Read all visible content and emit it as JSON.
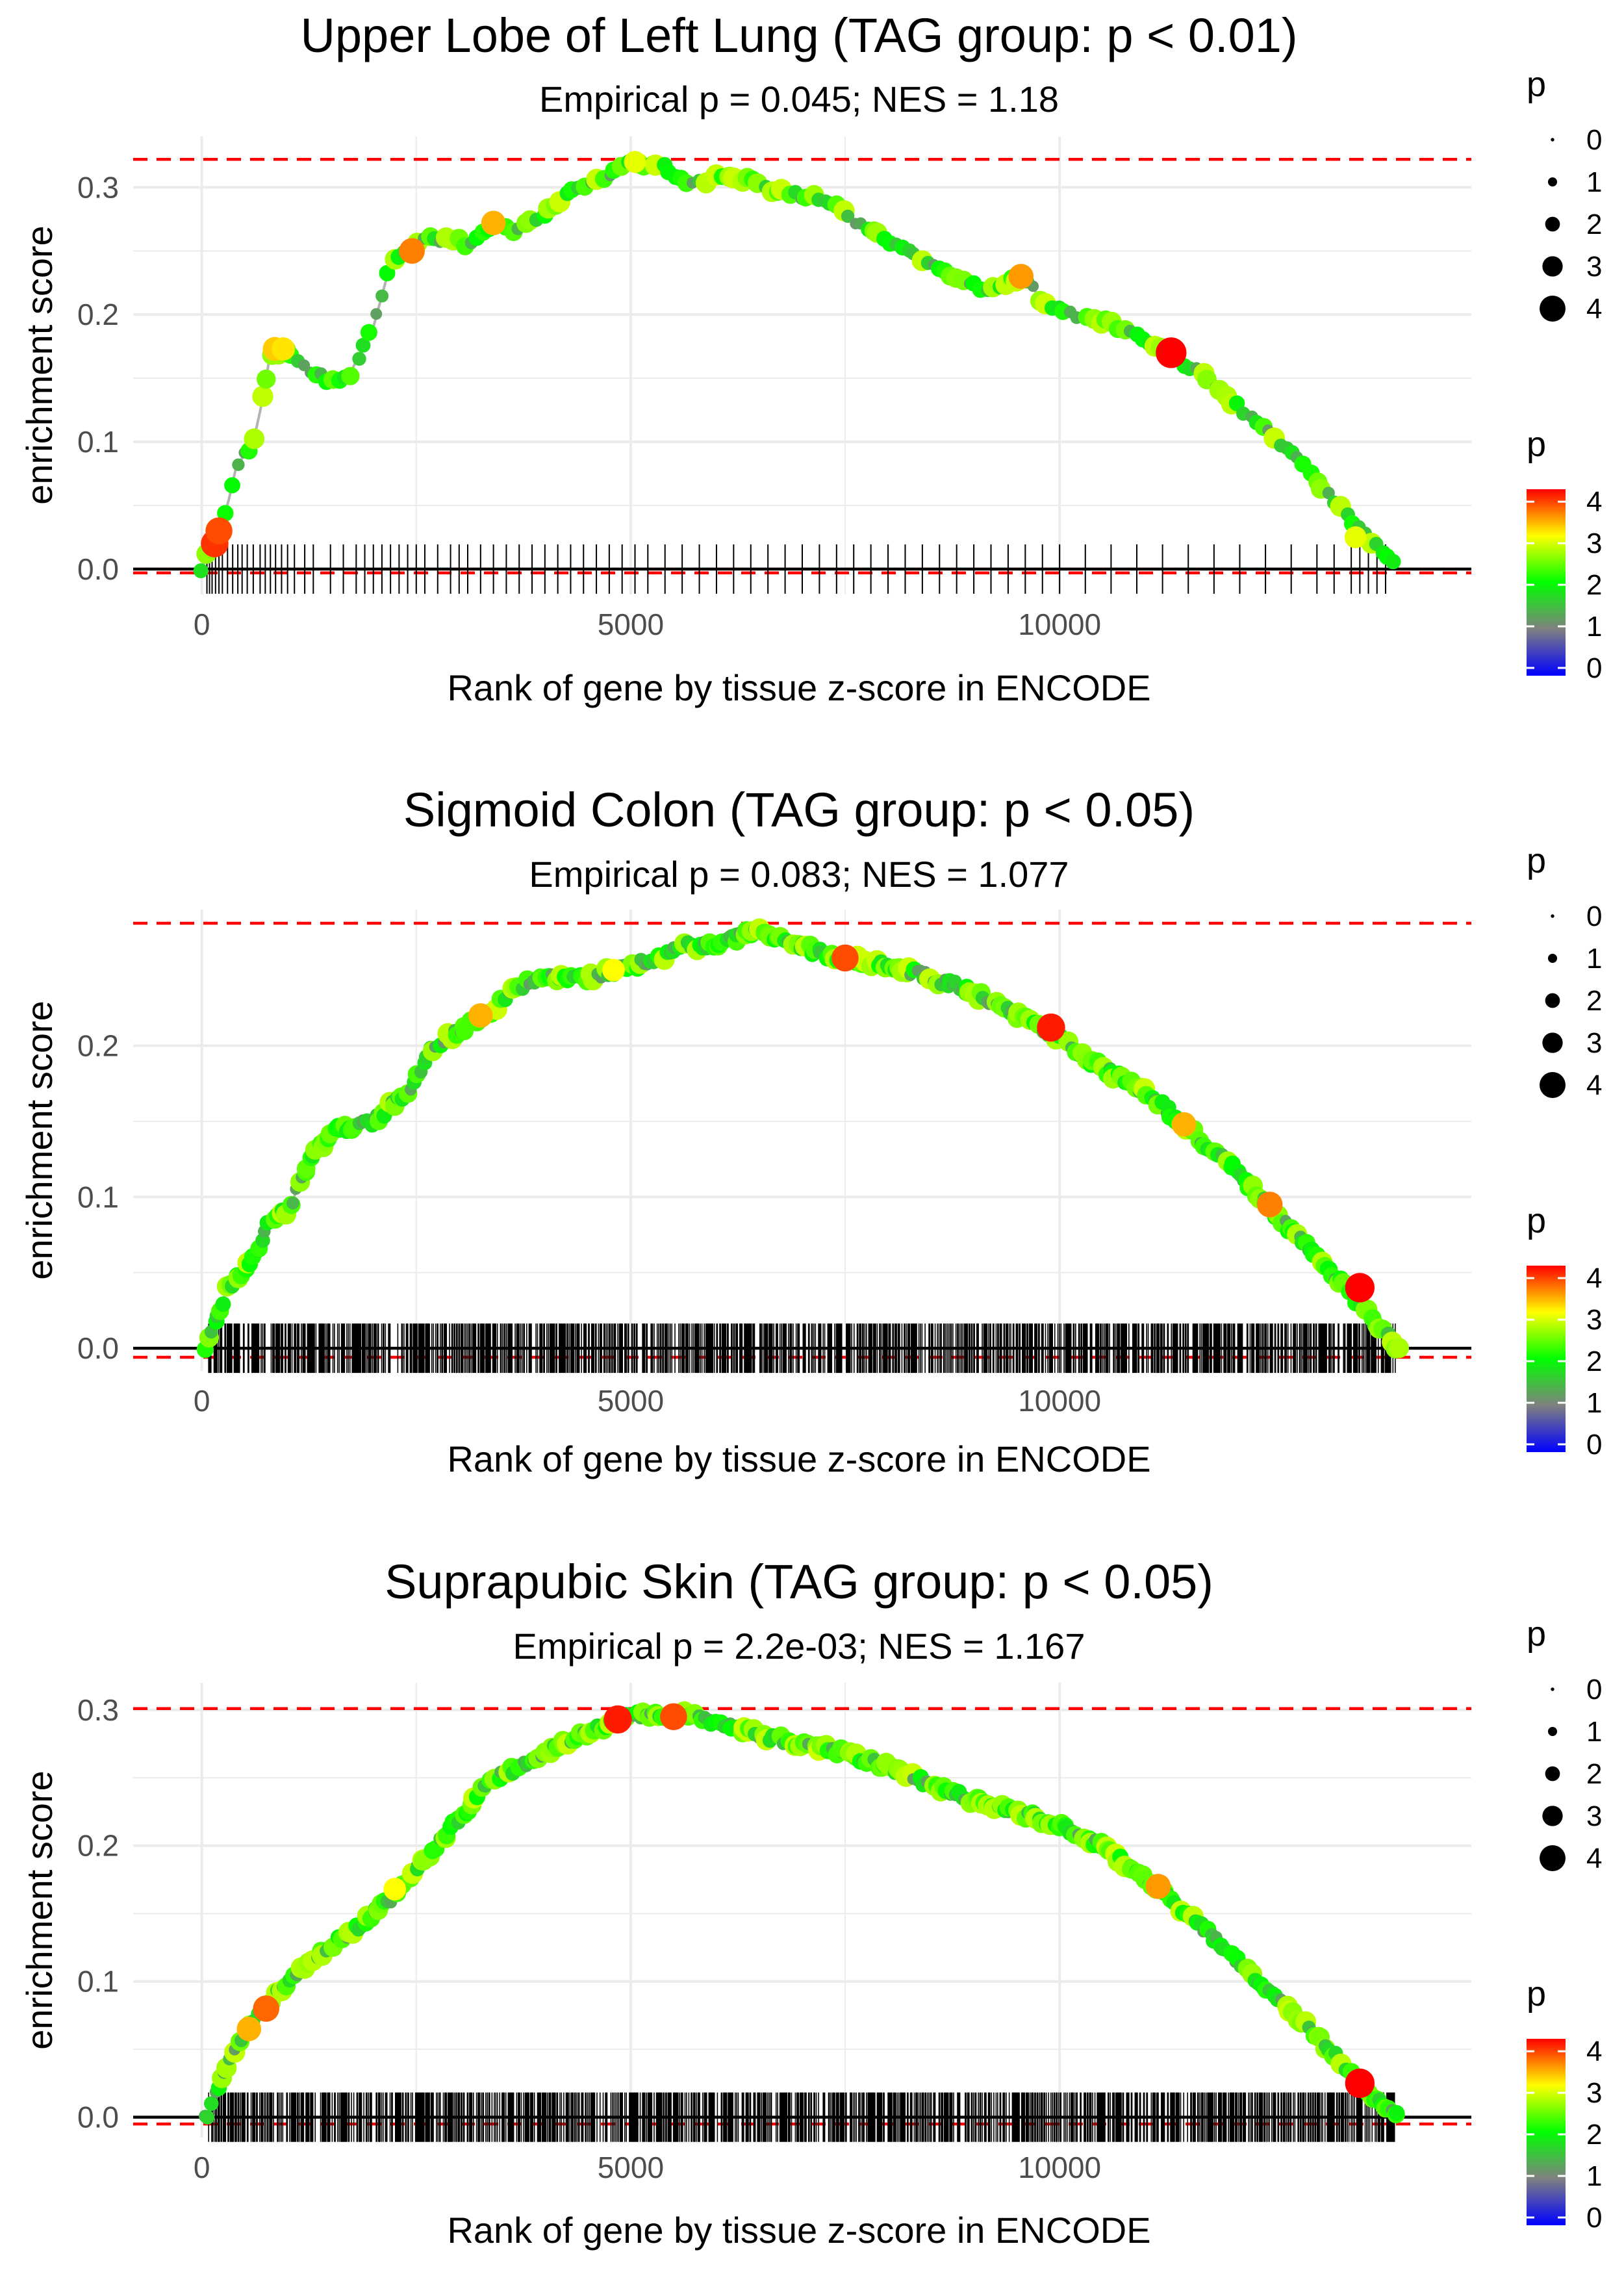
{
  "colors": {
    "grid": "#ebebeb",
    "threshold_line": "#ff0000",
    "running_line": "#b3b3b3",
    "axis_text": "#4d4d4d",
    "text": "#000000"
  },
  "legend_text": {
    "size_title": "p",
    "color_title": "p",
    "size_levels": [
      "0",
      "1",
      "2",
      "3",
      "4"
    ],
    "color_ticks": [
      "0",
      "1",
      "2",
      "3",
      "4"
    ]
  },
  "chart_data": [
    {
      "type": "line",
      "title": "Upper Lobe of Left Lung (TAG group: p < 0.01)",
      "subtitle": "Empirical p = 0.045; NES = 1.18",
      "xlabel": "Rank of gene by tissue z-score in ENCODE",
      "ylabel": "enrichment score",
      "xlim": [
        -800,
        14800
      ],
      "ylim": [
        -0.02,
        0.34
      ],
      "xticks": [
        0,
        5000,
        10000
      ],
      "xtick_labels": [
        "0",
        "5000",
        "10000"
      ],
      "yticks": [
        0,
        0.1,
        0.2,
        0.3
      ],
      "ytick_labels": [
        "0.0",
        "0.1",
        "0.2",
        "0.3"
      ],
      "hlines": [
        0.322,
        -0.003
      ],
      "n_genes": 13950,
      "anchors": [
        [
          0,
          0.0
        ],
        [
          100,
          0.02
        ],
        [
          200,
          0.03
        ],
        [
          300,
          0.05
        ],
        [
          400,
          0.08
        ],
        [
          600,
          0.1
        ],
        [
          700,
          0.13
        ],
        [
          800,
          0.17
        ],
        [
          1000,
          0.17
        ],
        [
          1200,
          0.16
        ],
        [
          1400,
          0.15
        ],
        [
          1700,
          0.15
        ],
        [
          2000,
          0.19
        ],
        [
          2200,
          0.24
        ],
        [
          2400,
          0.25
        ],
        [
          2600,
          0.26
        ],
        [
          2900,
          0.26
        ],
        [
          3100,
          0.255
        ],
        [
          3400,
          0.27
        ],
        [
          3700,
          0.265
        ],
        [
          4000,
          0.28
        ],
        [
          4300,
          0.3
        ],
        [
          4600,
          0.305
        ],
        [
          5000,
          0.32
        ],
        [
          5400,
          0.315
        ],
        [
          5700,
          0.3
        ],
        [
          6000,
          0.31
        ],
        [
          6400,
          0.305
        ],
        [
          6800,
          0.295
        ],
        [
          7300,
          0.29
        ],
        [
          7700,
          0.27
        ],
        [
          8200,
          0.25
        ],
        [
          8700,
          0.23
        ],
        [
          9200,
          0.22
        ],
        [
          9600,
          0.23
        ],
        [
          9800,
          0.21
        ],
        [
          10200,
          0.2
        ],
        [
          10700,
          0.19
        ],
        [
          11000,
          0.18
        ],
        [
          11300,
          0.17
        ],
        [
          11700,
          0.15
        ],
        [
          12200,
          0.12
        ],
        [
          12700,
          0.09
        ],
        [
          13100,
          0.06
        ],
        [
          13500,
          0.03
        ],
        [
          13900,
          0.005
        ]
      ],
      "hot_points": [
        [
          150,
          0.02,
          3.8
        ],
        [
          200,
          0.03,
          3.7
        ],
        [
          850,
          0.173,
          3.2
        ],
        [
          950,
          0.173,
          3.1
        ],
        [
          2450,
          0.25,
          3.5
        ],
        [
          3400,
          0.272,
          3.3
        ],
        [
          5050,
          0.32,
          2.9
        ],
        [
          9550,
          0.23,
          3.4
        ],
        [
          11300,
          0.17,
          4.3
        ],
        [
          13450,
          0.025,
          2.9
        ]
      ],
      "rug_genes": [
        60,
        90,
        120,
        160,
        200,
        240,
        300,
        360,
        420,
        470,
        530,
        600,
        680,
        740,
        800,
        860,
        930,
        1000,
        1080,
        1200,
        1300,
        1500,
        1650,
        1800,
        1900,
        2000,
        2100,
        2200,
        2300,
        2400,
        2500,
        2600,
        2750,
        2900,
        3000,
        3100,
        3250,
        3400,
        3550,
        3700,
        3850,
        4000,
        4150,
        4300,
        4450,
        4600,
        4750,
        4900,
        5050,
        5200,
        5400,
        5600,
        5800,
        6000,
        6200,
        6400,
        6600,
        6800,
        7000,
        7200,
        7400,
        7600,
        7800,
        8000,
        8200,
        8400,
        8600,
        8800,
        9000,
        9200,
        9400,
        9600,
        9800,
        10000,
        10300,
        10600,
        10900,
        11200,
        11500,
        11800,
        12100,
        12400,
        12700,
        13000,
        13200,
        13400,
        13500,
        13600,
        13700,
        13800
      ],
      "n_points": 200,
      "point_seed": 11
    },
    {
      "type": "line",
      "title": "Sigmoid Colon (TAG group: p < 0.05)",
      "subtitle": "Empirical p = 0.083; NES = 1.077",
      "xlabel": "Rank of gene by tissue z-score in ENCODE",
      "ylabel": "enrichment score",
      "xlim": [
        -800,
        14800
      ],
      "ylim": [
        -0.015,
        0.29
      ],
      "xticks": [
        0,
        5000,
        10000
      ],
      "xtick_labels": [
        "0",
        "5000",
        "10000"
      ],
      "yticks": [
        0,
        0.1,
        0.2
      ],
      "ytick_labels": [
        "0.0",
        "0.1",
        "0.2"
      ],
      "hlines": [
        0.281,
        -0.006
      ],
      "n_genes": 13950,
      "anchors": [
        [
          50,
          0.0
        ],
        [
          300,
          0.04
        ],
        [
          600,
          0.06
        ],
        [
          800,
          0.085
        ],
        [
          1000,
          0.09
        ],
        [
          1300,
          0.13
        ],
        [
          1600,
          0.145
        ],
        [
          2000,
          0.15
        ],
        [
          2400,
          0.17
        ],
        [
          2700,
          0.2
        ],
        [
          3000,
          0.21
        ],
        [
          3300,
          0.22
        ],
        [
          3600,
          0.235
        ],
        [
          3900,
          0.245
        ],
        [
          4200,
          0.245
        ],
        [
          4500,
          0.245
        ],
        [
          4800,
          0.25
        ],
        [
          5200,
          0.255
        ],
        [
          5600,
          0.265
        ],
        [
          6000,
          0.268
        ],
        [
          6500,
          0.276
        ],
        [
          7000,
          0.265
        ],
        [
          7500,
          0.258
        ],
        [
          8000,
          0.253
        ],
        [
          8500,
          0.245
        ],
        [
          9000,
          0.235
        ],
        [
          9500,
          0.22
        ],
        [
          10000,
          0.205
        ],
        [
          10500,
          0.185
        ],
        [
          11000,
          0.17
        ],
        [
          11500,
          0.145
        ],
        [
          12000,
          0.12
        ],
        [
          12500,
          0.09
        ],
        [
          13000,
          0.06
        ],
        [
          13500,
          0.03
        ],
        [
          13950,
          0.0
        ]
      ],
      "hot_points": [
        [
          3250,
          0.22,
          3.3
        ],
        [
          4800,
          0.25,
          3.0
        ],
        [
          7500,
          0.258,
          3.7
        ],
        [
          9900,
          0.212,
          3.9
        ],
        [
          11450,
          0.148,
          3.3
        ],
        [
          12450,
          0.095,
          3.5
        ],
        [
          13500,
          0.04,
          4.1
        ]
      ],
      "rug_density": 2,
      "rug_range": [
        80,
        13920
      ],
      "n_points": 400,
      "point_seed": 23
    },
    {
      "type": "line",
      "title": "Suprapubic Skin (TAG group: p < 0.05)",
      "subtitle": "Empirical p = 2.2e-03; NES = 1.167",
      "xlabel": "Rank of gene by tissue z-score in ENCODE",
      "ylabel": "enrichment score",
      "xlim": [
        -800,
        14800
      ],
      "ylim": [
        -0.015,
        0.32
      ],
      "xticks": [
        0,
        5000,
        10000
      ],
      "xtick_labels": [
        "0",
        "5000",
        "10000"
      ],
      "yticks": [
        0,
        0.1,
        0.2,
        0.3
      ],
      "ytick_labels": [
        "0.0",
        "0.1",
        "0.2",
        "0.3"
      ],
      "hlines": [
        0.301,
        -0.005
      ],
      "n_genes": 13950,
      "anchors": [
        [
          50,
          0.0
        ],
        [
          300,
          0.04
        ],
        [
          600,
          0.07
        ],
        [
          1000,
          0.1
        ],
        [
          1400,
          0.12
        ],
        [
          1800,
          0.14
        ],
        [
          2200,
          0.16
        ],
        [
          2600,
          0.19
        ],
        [
          3000,
          0.22
        ],
        [
          3400,
          0.25
        ],
        [
          3800,
          0.26
        ],
        [
          4200,
          0.275
        ],
        [
          4600,
          0.285
        ],
        [
          4900,
          0.293
        ],
        [
          5300,
          0.298
        ],
        [
          5700,
          0.296
        ],
        [
          6100,
          0.29
        ],
        [
          6500,
          0.282
        ],
        [
          7000,
          0.275
        ],
        [
          7500,
          0.268
        ],
        [
          8000,
          0.258
        ],
        [
          8500,
          0.245
        ],
        [
          9000,
          0.233
        ],
        [
          9500,
          0.225
        ],
        [
          10000,
          0.215
        ],
        [
          10500,
          0.2
        ],
        [
          11000,
          0.175
        ],
        [
          11500,
          0.15
        ],
        [
          12000,
          0.12
        ],
        [
          12500,
          0.09
        ],
        [
          13000,
          0.06
        ],
        [
          13500,
          0.025
        ],
        [
          13950,
          0.0
        ]
      ],
      "hot_points": [
        [
          550,
          0.065,
          3.3
        ],
        [
          750,
          0.08,
          3.6
        ],
        [
          2250,
          0.168,
          3.0
        ],
        [
          4850,
          0.293,
          3.9
        ],
        [
          5500,
          0.295,
          3.7
        ],
        [
          11150,
          0.17,
          3.4
        ],
        [
          13500,
          0.025,
          4.1
        ]
      ],
      "rug_density": 2,
      "rug_range": [
        80,
        13920
      ],
      "n_points": 400,
      "point_seed": 37
    }
  ]
}
